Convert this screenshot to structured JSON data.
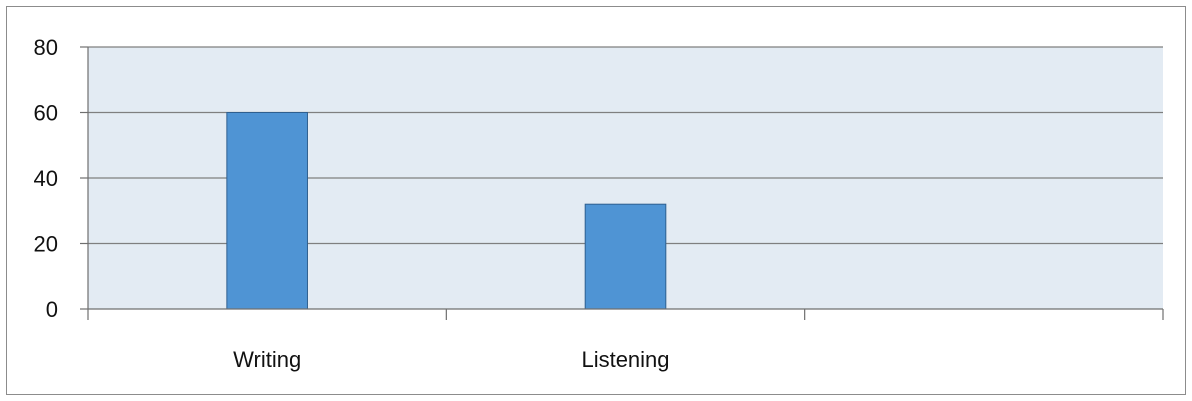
{
  "chart_data": {
    "type": "bar",
    "title": "",
    "xlabel": "",
    "ylabel": "",
    "categories": [
      "Writing",
      "Listening",
      ""
    ],
    "values": [
      60,
      32,
      null
    ],
    "ylim": [
      0,
      80
    ],
    "yticks": [
      0,
      20,
      40,
      60,
      80
    ],
    "grid": true,
    "legend": "none",
    "colors": {
      "bar": "#4f94d4",
      "bar_edge": "#2f5f8f",
      "plot_bg": "#e3ebf3",
      "gridline": "#7f7f7f",
      "axis": "#6f6f6f"
    }
  }
}
